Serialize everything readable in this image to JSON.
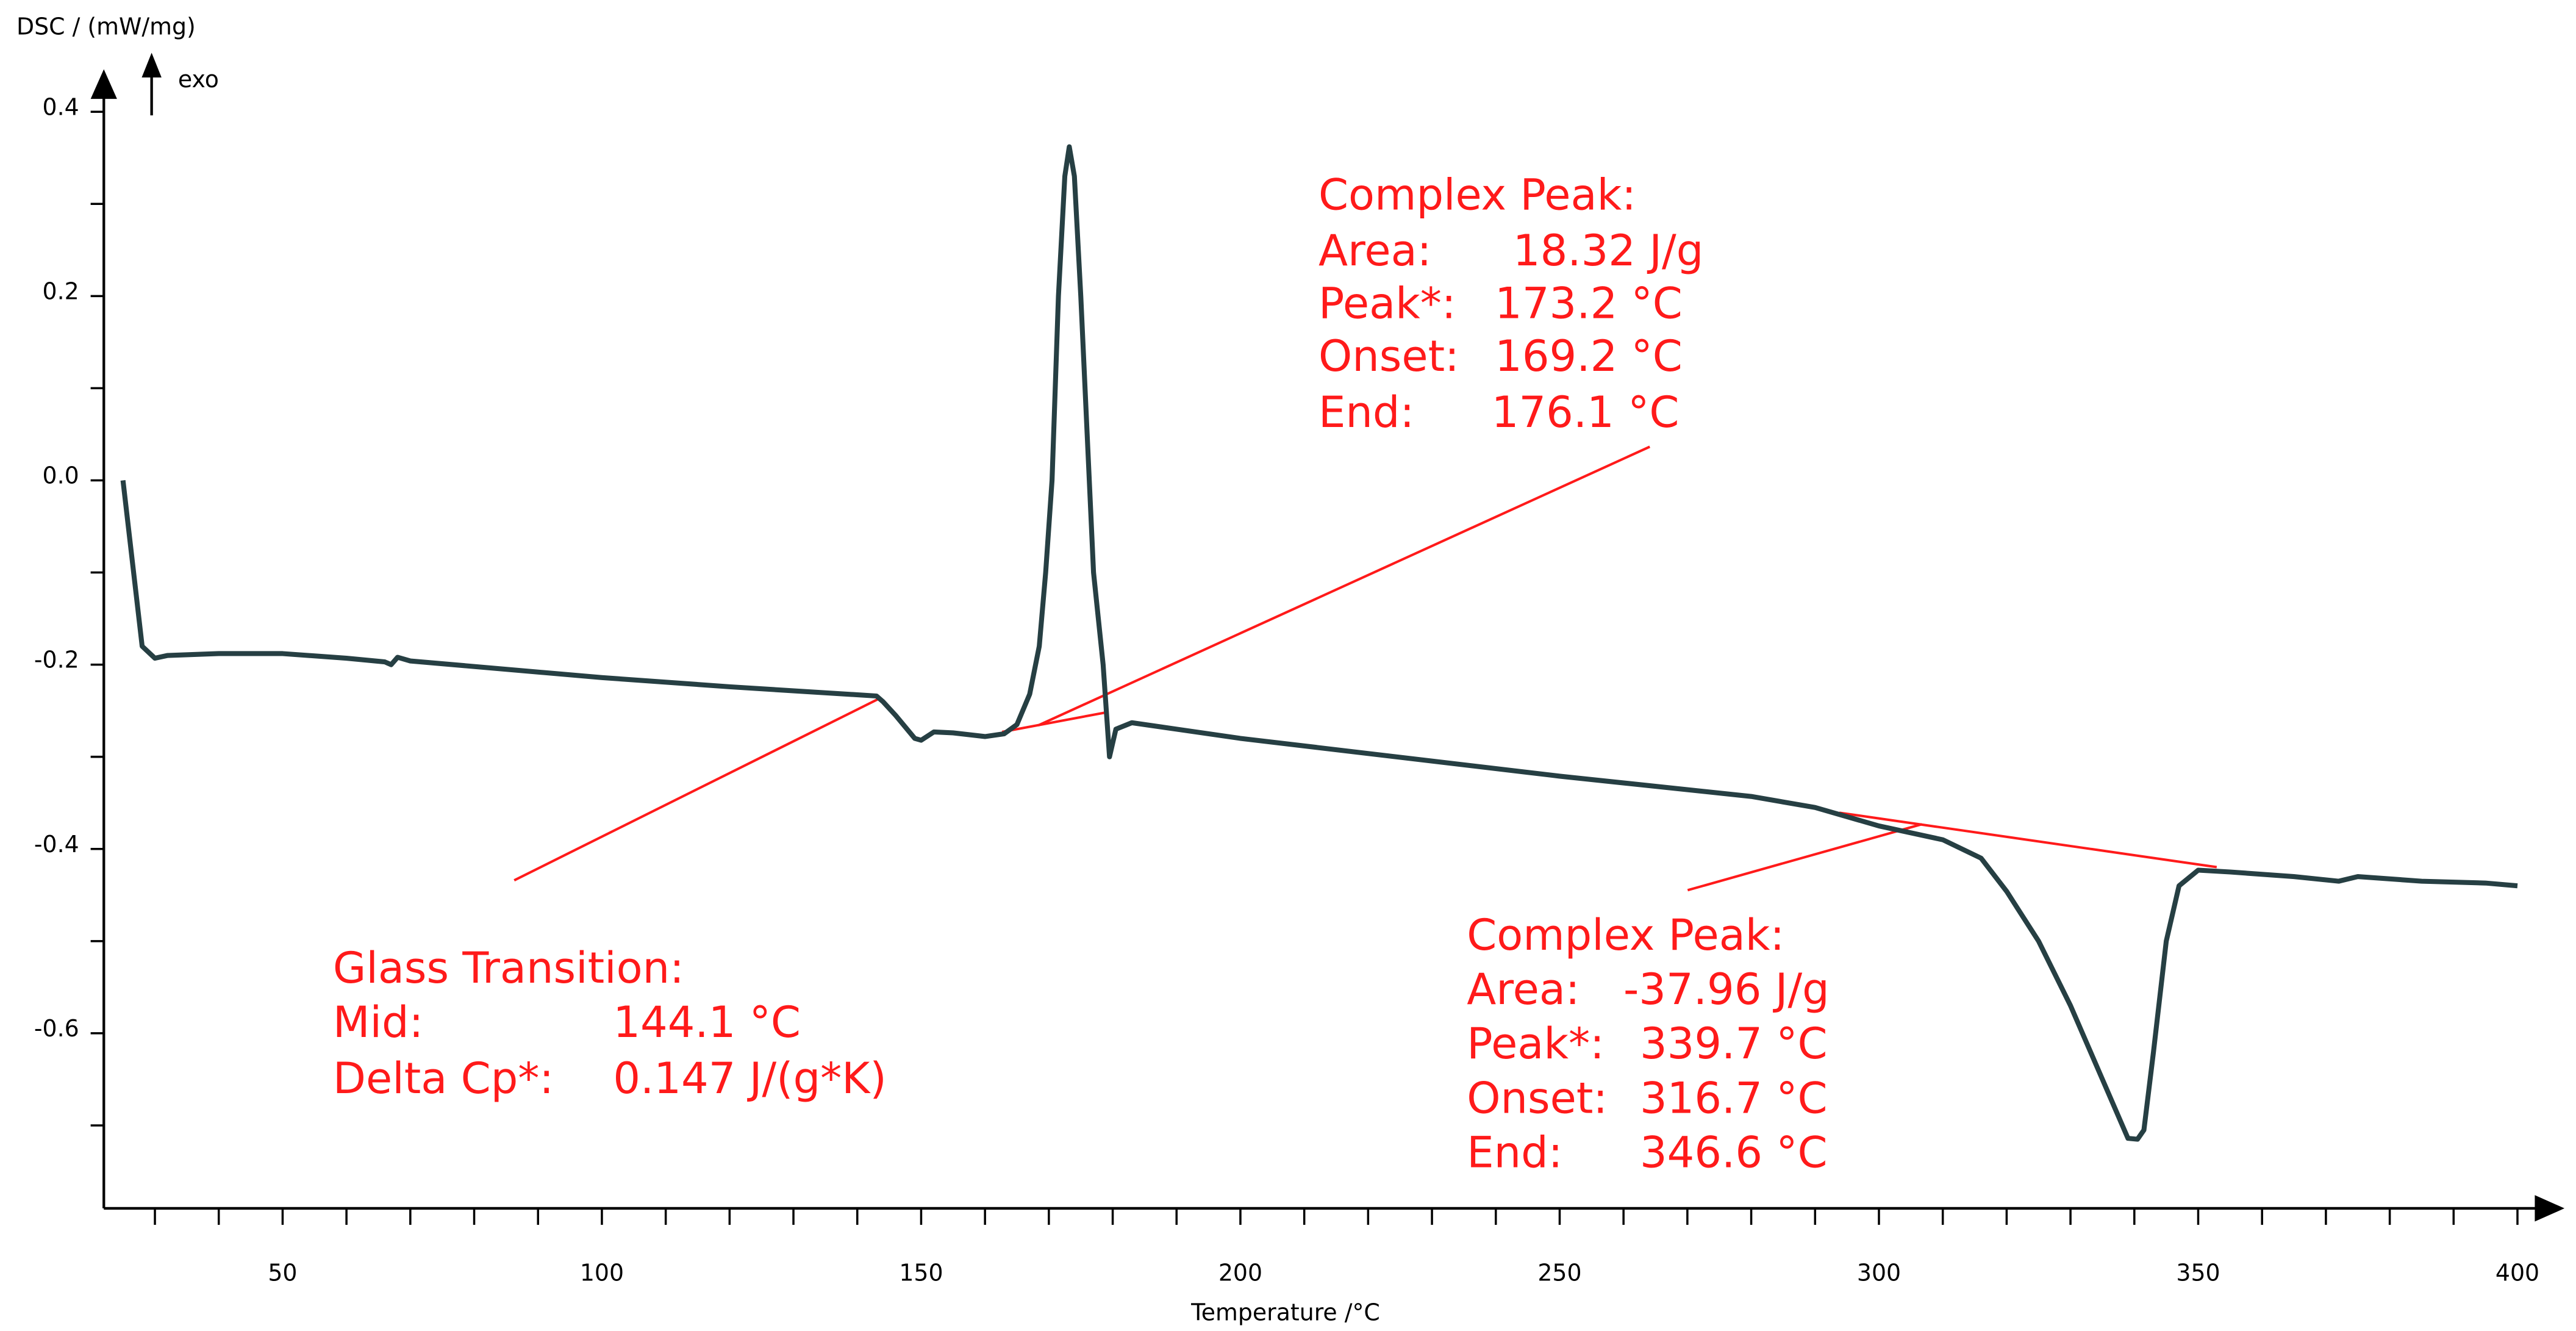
{
  "chart_data": {
    "type": "line",
    "y_label": "DSC / (mW/mg)",
    "x_label": "Temperature /°C",
    "direction_label": "exo",
    "color": "#263f43",
    "xlim": [
      22,
      406
    ],
    "ylim": [
      -0.79,
      0.44
    ],
    "xticks": [
      50,
      100,
      150,
      200,
      250,
      300,
      350,
      400
    ],
    "yticks": [
      0.4,
      0.2,
      {
        "value": 0,
        "label": "0.0"
      },
      -0.2,
      -0.4,
      -0.6
    ],
    "x": [
      25,
      26.5,
      28,
      30,
      32,
      40,
      50,
      60,
      66,
      67,
      68,
      70,
      100,
      120,
      143,
      144,
      146,
      149,
      150,
      152,
      155,
      160,
      163,
      165,
      167,
      168.5,
      169.5,
      170.5,
      171.5,
      172.5,
      173.2,
      174,
      175,
      176,
      177,
      178.5,
      179.5,
      180.5,
      183,
      190,
      200,
      250,
      280,
      290,
      300,
      310,
      316,
      320,
      325,
      330,
      335,
      339,
      340.5,
      341.5,
      343,
      345,
      347,
      350,
      355,
      365,
      372,
      375,
      385,
      395,
      400
    ],
    "values": [
      0.0,
      -0.09,
      -0.18,
      -0.193,
      -0.19,
      -0.188,
      -0.188,
      -0.193,
      -0.197,
      -0.2,
      -0.192,
      -0.196,
      -0.214,
      -0.224,
      -0.234,
      -0.24,
      -0.255,
      -0.28,
      -0.282,
      -0.273,
      -0.274,
      -0.278,
      -0.275,
      -0.265,
      -0.232,
      -0.18,
      -0.1,
      0.0,
      0.2,
      0.33,
      0.362,
      0.33,
      0.2,
      0.05,
      -0.1,
      -0.2,
      -0.3,
      -0.27,
      -0.263,
      -0.27,
      -0.28,
      -0.321,
      -0.343,
      -0.355,
      -0.375,
      -0.39,
      -0.41,
      -0.446,
      -0.5,
      -0.57,
      -0.65,
      -0.714,
      -0.715,
      -0.705,
      -0.62,
      -0.5,
      -0.44,
      -0.423,
      -0.425,
      -0.43,
      -0.435,
      -0.43,
      -0.435,
      -0.437,
      -0.44
    ],
    "annotations": [
      {
        "lines": [
          [
            "Complex Peak:"
          ],
          [
            "Area:",
            "18.32 J/g"
          ],
          [
            "Peak*:",
            "173.2 °C"
          ],
          [
            "Onset:",
            "169.2 °C"
          ],
          [
            "End:",
            "176.1 °C"
          ]
        ]
      },
      {
        "lines": [
          [
            "Glass Transition:"
          ],
          [
            "Mid:",
            "144.1 °C"
          ],
          [
            "Delta Cp*:",
            "0.147 J/(g*K)"
          ]
        ]
      },
      {
        "lines": [
          [
            "Complex Peak:"
          ],
          [
            "Area:",
            "-37.96 J/g"
          ],
          [
            "Peak*:",
            "339.7 °C"
          ],
          [
            "Onset:",
            "316.7 °C"
          ],
          [
            "End:",
            "346.6 °C"
          ]
        ]
      }
    ]
  }
}
